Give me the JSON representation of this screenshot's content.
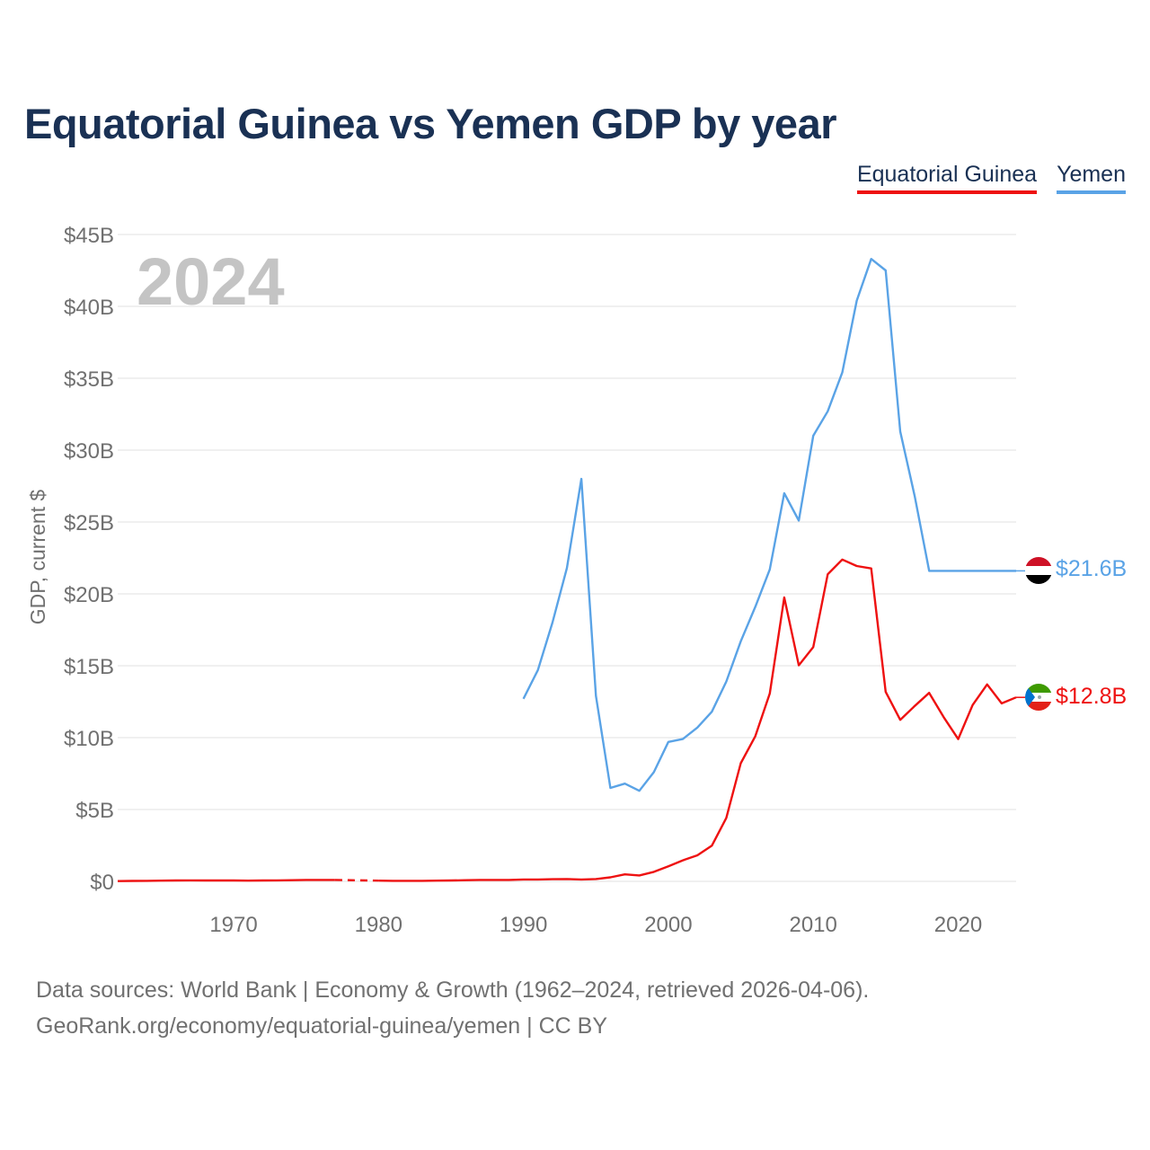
{
  "title": "Equatorial Guinea vs Yemen GDP by year",
  "legend": [
    {
      "label": "Equatorial Guinea",
      "color": "#ee1111"
    },
    {
      "label": "Yemen",
      "color": "#5aa3e6"
    }
  ],
  "source_line1": "Data sources: World Bank | Economy & Growth (1962–2024, retrieved 2026-04-06).",
  "source_line2": "GeoRank.org/economy/equatorial-guinea/yemen | CC BY",
  "chart_data": {
    "type": "line",
    "title": "Equatorial Guinea vs Yemen GDP by year",
    "year_label": "2024",
    "ylabel": "GDP, current $",
    "xlabel": "",
    "xlim": [
      1962,
      2024
    ],
    "ylim": [
      0,
      45
    ],
    "y_unit": "billions USD",
    "y_ticks": [
      {
        "value": 0,
        "label": "$0"
      },
      {
        "value": 5,
        "label": "$5B"
      },
      {
        "value": 10,
        "label": "$10B"
      },
      {
        "value": 15,
        "label": "$15B"
      },
      {
        "value": 20,
        "label": "$20B"
      },
      {
        "value": 25,
        "label": "$25B"
      },
      {
        "value": 30,
        "label": "$30B"
      },
      {
        "value": 35,
        "label": "$35B"
      },
      {
        "value": 40,
        "label": "$40B"
      },
      {
        "value": 45,
        "label": "$45B"
      }
    ],
    "x_ticks": [
      {
        "value": 1970,
        "label": "1970"
      },
      {
        "value": 1980,
        "label": "1980"
      },
      {
        "value": 1990,
        "label": "1990"
      },
      {
        "value": 2000,
        "label": "2000"
      },
      {
        "value": 2010,
        "label": "2010"
      },
      {
        "value": 2020,
        "label": "2020"
      }
    ],
    "grid": true,
    "series": [
      {
        "name": "Yemen",
        "color": "#5aa3e6",
        "end_label": "$21.6B",
        "flag_icon": "yemen-flag-icon",
        "x": [
          1990,
          1991,
          1992,
          1993,
          1994,
          1995,
          1996,
          1997,
          1998,
          1999,
          2000,
          2001,
          2002,
          2003,
          2004,
          2005,
          2006,
          2007,
          2008,
          2009,
          2010,
          2011,
          2012,
          2013,
          2014,
          2015,
          2016,
          2017,
          2018,
          2024
        ],
        "values": [
          12.7,
          14.7,
          18.0,
          21.8,
          28.0,
          12.9,
          6.5,
          6.8,
          6.3,
          7.6,
          9.7,
          9.9,
          10.7,
          11.8,
          13.9,
          16.7,
          19.1,
          21.7,
          27.0,
          25.1,
          31.0,
          32.7,
          35.4,
          40.4,
          43.3,
          42.5,
          31.3,
          26.8,
          21.6,
          21.6
        ]
      },
      {
        "name": "Equatorial Guinea",
        "color": "#ee1111",
        "end_label": "$12.8B",
        "flag_icon": "equatorial-guinea-flag-icon",
        "gap": [
          1977,
          1980
        ],
        "x": [
          1962,
          1963,
          1964,
          1965,
          1966,
          1967,
          1968,
          1969,
          1970,
          1971,
          1972,
          1973,
          1974,
          1975,
          1976,
          1977,
          1980,
          1981,
          1982,
          1983,
          1984,
          1985,
          1986,
          1987,
          1988,
          1989,
          1990,
          1991,
          1992,
          1993,
          1994,
          1995,
          1996,
          1997,
          1998,
          1999,
          2000,
          2001,
          2002,
          2003,
          2004,
          2005,
          2006,
          2007,
          2008,
          2009,
          2010,
          2011,
          2012,
          2013,
          2014,
          2015,
          2016,
          2017,
          2018,
          2019,
          2020,
          2021,
          2022,
          2023,
          2024
        ],
        "values": [
          0.02,
          0.03,
          0.04,
          0.05,
          0.06,
          0.07,
          0.06,
          0.06,
          0.06,
          0.05,
          0.06,
          0.07,
          0.08,
          0.1,
          0.1,
          0.1,
          0.05,
          0.04,
          0.04,
          0.04,
          0.05,
          0.06,
          0.08,
          0.1,
          0.1,
          0.1,
          0.13,
          0.13,
          0.15,
          0.16,
          0.13,
          0.16,
          0.28,
          0.49,
          0.41,
          0.66,
          1.05,
          1.46,
          1.81,
          2.48,
          4.41,
          8.22,
          10.1,
          13.07,
          19.75,
          15.03,
          16.3,
          21.36,
          22.39,
          21.94,
          21.77,
          13.18,
          11.24,
          12.2,
          13.11,
          11.42,
          9.9,
          12.27,
          13.7,
          12.38,
          12.8
        ]
      }
    ]
  }
}
